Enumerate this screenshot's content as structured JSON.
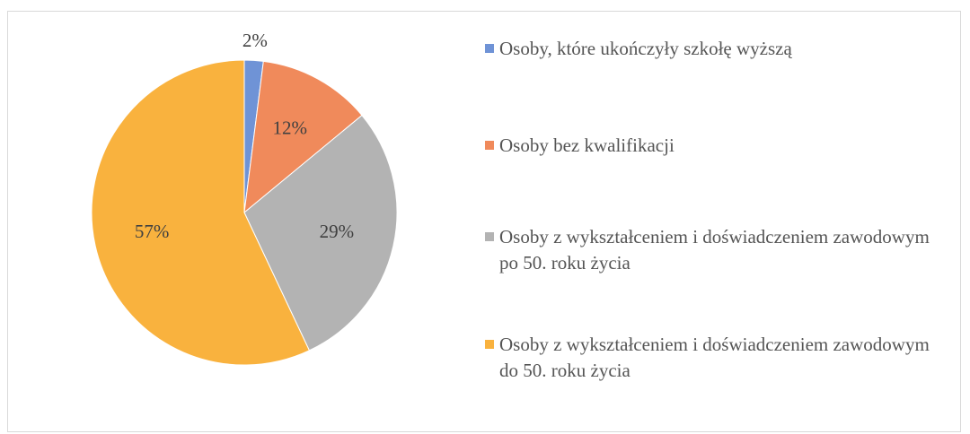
{
  "chart_data": {
    "type": "pie",
    "categories": [
      "Osoby, które ukończyły szkołę wyższą",
      "Osoby bez kwalifikacji",
      "Osoby z wykształceniem i doświadczeniem zawodowym po 50. roku życia",
      "Osoby z wykształceniem i doświadczeniem zawodowym do 50. roku życia"
    ],
    "values": [
      2,
      12,
      29,
      57
    ],
    "value_labels": [
      "2%",
      "12%",
      "29%",
      "57%"
    ],
    "colors": [
      "#6f93d6",
      "#f08a5b",
      "#b3b3b3",
      "#f9b23e"
    ],
    "legend": "right"
  }
}
